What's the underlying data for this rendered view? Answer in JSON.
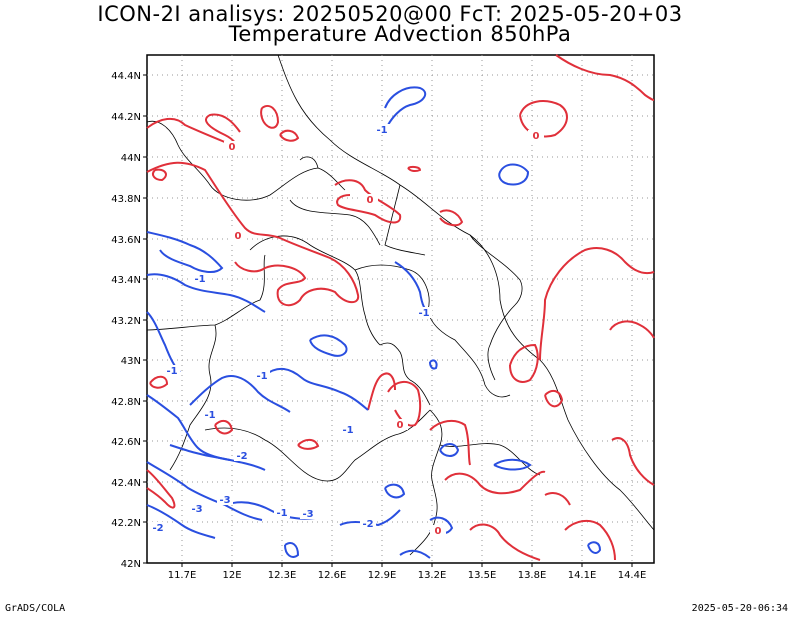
{
  "title_line1": "ICON-2I analisys: 20250520@00 FcT: 2025-05-20+03",
  "title_line2": "Temperature Advection 850hPa",
  "footer_left": "GrADS/COLA",
  "footer_right": "2025-05-20-06:34",
  "lat_ticks": [
    "44.4N",
    "44.2N",
    "44N",
    "43.8N",
    "43.6N",
    "43.4N",
    "43.2N",
    "43N",
    "42.8N",
    "42.6N",
    "42.4N",
    "42.2N",
    "42N"
  ],
  "lon_ticks": [
    "11.7E",
    "12E",
    "12.3E",
    "12.6E",
    "12.9E",
    "13.2E",
    "13.5E",
    "13.8E",
    "14.1E",
    "14.4E"
  ],
  "colors": {
    "positive": "#e0303a",
    "negative": "#2a4fe0",
    "grid": "#999999",
    "border": "#000000"
  },
  "contour_labels": [
    {
      "text": "-1",
      "color": "negative"
    },
    {
      "text": "0",
      "color": "positive"
    },
    {
      "text": "-1",
      "color": "negative"
    },
    {
      "text": "-1",
      "color": "negative"
    },
    {
      "text": "-1",
      "color": "negative"
    },
    {
      "text": "-1",
      "color": "negative"
    },
    {
      "text": "-1",
      "color": "negative"
    },
    {
      "text": "-1",
      "color": "negative"
    },
    {
      "text": "-2",
      "color": "negative"
    },
    {
      "text": "-3",
      "color": "negative"
    },
    {
      "text": "-3",
      "color": "negative"
    },
    {
      "text": "-3",
      "color": "negative"
    },
    {
      "text": "-2",
      "color": "negative"
    },
    {
      "text": "-2",
      "color": "negative"
    },
    {
      "text": "0",
      "color": "positive"
    },
    {
      "text": "0",
      "color": "positive"
    },
    {
      "text": "0",
      "color": "positive"
    },
    {
      "text": "0",
      "color": "positive"
    },
    {
      "text": "0",
      "color": "positive"
    },
    {
      "text": "-1",
      "color": "negative"
    }
  ]
}
